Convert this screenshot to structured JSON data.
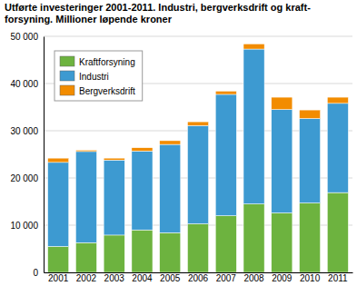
{
  "chart_data": {
    "type": "bar",
    "stacked": true,
    "grid": true,
    "legend": "upper left",
    "title": "Utførte investeringer 2001-2011. Industri, bergverksdrift og kraft-forsyning. Millioner løpende kroner",
    "categories": [
      "2001",
      "2002",
      "2003",
      "2004",
      "2005",
      "2006",
      "2007",
      "2008",
      "2009",
      "2010",
      "2011"
    ],
    "series": [
      {
        "name": "Kraftforsyning",
        "color": "#6db33f",
        "values": [
          5500,
          6300,
          7900,
          9000,
          8400,
          10300,
          12000,
          14500,
          12600,
          14700,
          16900
        ]
      },
      {
        "name": "Industri",
        "color": "#3d9ad1",
        "values": [
          17800,
          19300,
          15900,
          16700,
          18700,
          20800,
          25700,
          32800,
          21900,
          17900,
          18900
        ]
      },
      {
        "name": "Bergverksdrift",
        "color": "#f28c00",
        "values": [
          900,
          300,
          400,
          700,
          800,
          800,
          700,
          1100,
          2600,
          1800,
          1300
        ]
      }
    ],
    "ylim": [
      0,
      50000
    ],
    "yticks": [
      0,
      {
        "value": 10000,
        "label": "10 000"
      },
      {
        "value": 20000,
        "label": "20 000"
      },
      {
        "value": 30000,
        "label": "30 000"
      },
      {
        "value": 40000,
        "label": "40 000"
      },
      {
        "value": 50000,
        "label": "50 000"
      }
    ]
  }
}
